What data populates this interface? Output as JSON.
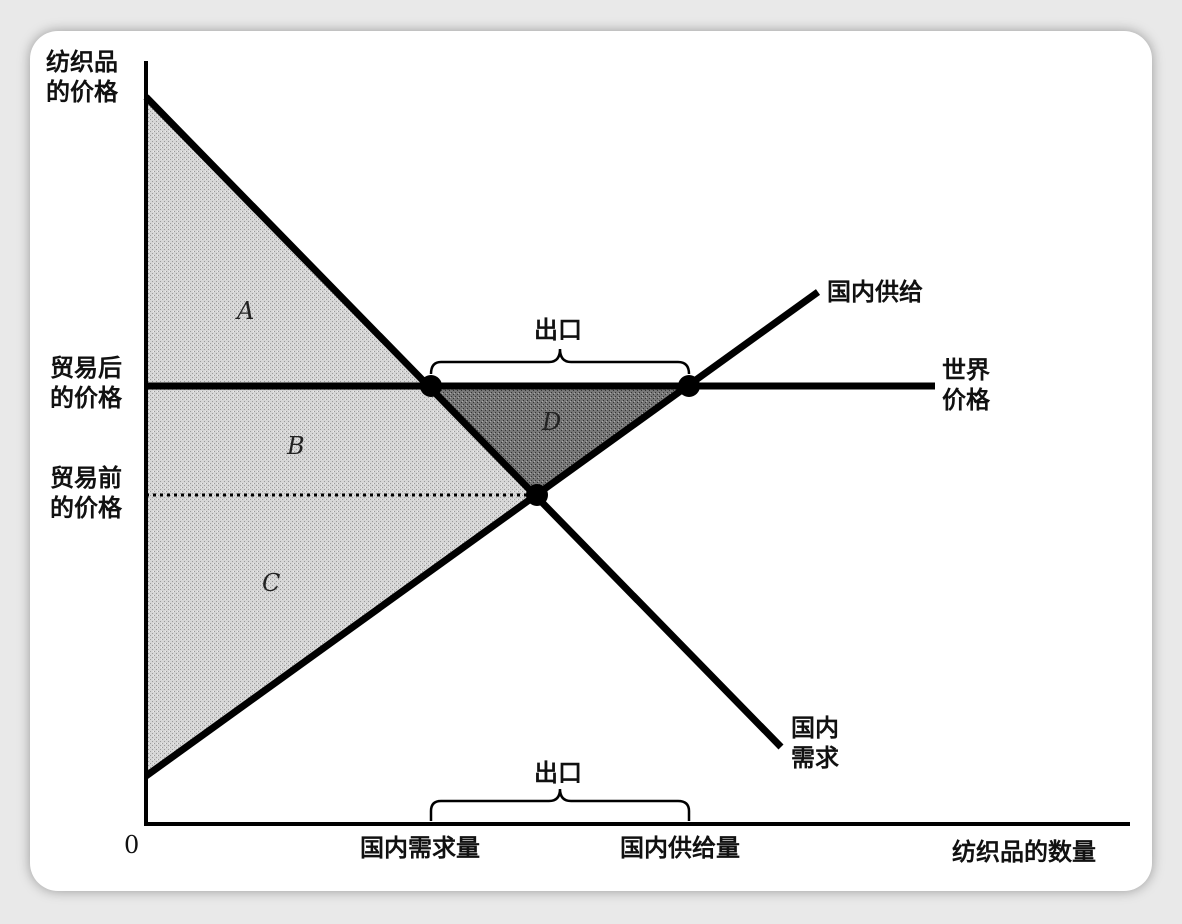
{
  "y_axis_label": [
    "纺织品",
    "的价格"
  ],
  "x_axis_label": "纺织品的数量",
  "origin_label": "0",
  "price_after_trade_label": [
    "贸易后",
    "的价格"
  ],
  "price_before_trade_label": [
    "贸易前",
    "的价格"
  ],
  "world_price_label": [
    "世界",
    "价格"
  ],
  "domestic_supply_label": "国内供给",
  "domestic_demand_label": [
    "国内",
    "需求"
  ],
  "exports_label_top": "出口",
  "exports_label_bottom": "出口",
  "quantity_demanded_label": "国内需求量",
  "quantity_supplied_label": "国内供给量",
  "regions": {
    "a": "A",
    "b": "B",
    "c": "C",
    "d": "D"
  },
  "colors": {
    "line": "#000000",
    "shade_light": "#c8c8c8",
    "shade_dark": "#6e6e6e",
    "background": "#ffffff"
  }
}
